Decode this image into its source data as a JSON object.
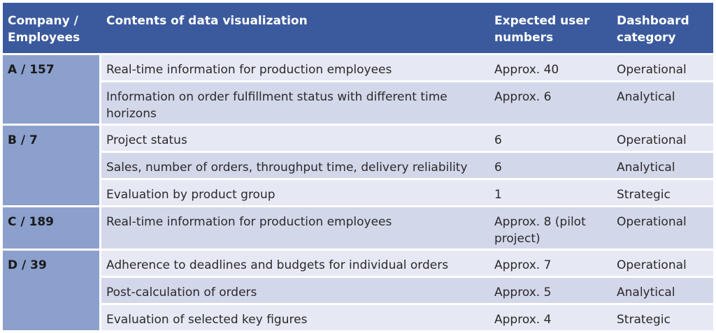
{
  "header": {
    "company": "Company / Employees",
    "contents": "Contents of data visualization",
    "users": "Expected user numbers",
    "category": "Dashboard category"
  },
  "groups": [
    {
      "company": "A / 157",
      "rows": [
        {
          "contents": "Real-time information for production employees",
          "users": "Approx. 40",
          "category": "Operational"
        },
        {
          "contents": "Information on order fulfillment status with different time horizons",
          "users": "Approx. 6",
          "category": "Analytical"
        }
      ]
    },
    {
      "company": "B / 7",
      "rows": [
        {
          "contents": "Project status",
          "users": "6",
          "category": "Operational"
        },
        {
          "contents": "Sales, number of orders, throughput time, delivery reliability",
          "users": "6",
          "category": "Analytical"
        },
        {
          "contents": "Evaluation by product group",
          "users": "1",
          "category": "Strategic"
        }
      ]
    },
    {
      "company": "C / 189",
      "rows": [
        {
          "contents": "Real-time information for production employees",
          "users": "Approx. 8 (pilot project)",
          "category": "Operational"
        }
      ]
    },
    {
      "company": "D / 39",
      "rows": [
        {
          "contents": "Adherence to deadlines and budgets for individual orders",
          "users": "Approx. 7",
          "category": "Operational"
        },
        {
          "contents": "Post-calculation of orders",
          "users": "Approx. 5",
          "category": "Analytical"
        },
        {
          "contents": "Evaluation of selected key figures",
          "users": "Approx. 4",
          "category": "Strategic"
        }
      ]
    }
  ]
}
